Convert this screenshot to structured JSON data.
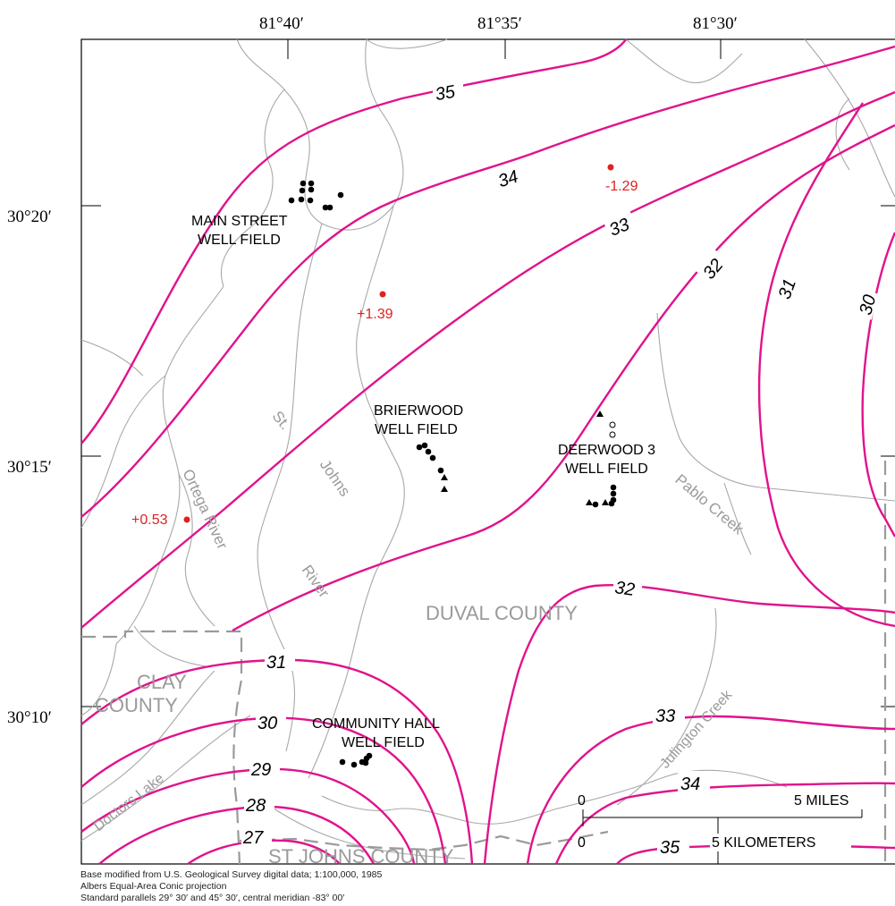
{
  "longitude_labels": [
    "81°40′",
    "81°35′",
    "81°30′"
  ],
  "latitude_labels": [
    "30°20′",
    "30°15′",
    "30°10′"
  ],
  "contours": {
    "c35_top": "35",
    "c34": "34",
    "c33": "33",
    "c32_top": "32",
    "c31_east": "31",
    "c30_east": "30",
    "c32_south": "32",
    "c31_south": "31",
    "c30_south": "30",
    "c29": "29",
    "c28": "28",
    "c27": "27",
    "c33_se": "33",
    "c34_se": "34",
    "c35_se": "35"
  },
  "well_fields": {
    "main_street": [
      "MAIN STREET",
      "WELL FIELD"
    ],
    "brierwood": [
      "BRIERWOOD",
      "WELL FIELD"
    ],
    "deerwood": [
      "DEERWOOD  3",
      "WELL  FIELD"
    ],
    "community_hall": [
      "COMMUNITY HALL",
      "WELL FIELD"
    ]
  },
  "counties": {
    "duval": "DUVAL COUNTY",
    "clay": [
      "CLAY",
      "COUNTY"
    ],
    "st_johns": "ST JOHNS COUNTY"
  },
  "water_features": {
    "st_johns_river": [
      "St.",
      "Johns",
      "River"
    ],
    "ortega_river": "Ortega River",
    "pablo_creek": "Pablo Creek",
    "julington_creek": "Julington Creek",
    "doctors_lake": "Doctors Lake"
  },
  "head_changes": [
    "-1.29",
    "+1.39",
    "+0.53"
  ],
  "scale_bar": {
    "miles_start": "0",
    "miles_end": "5 MILES",
    "km_start": "0",
    "km_end": "5 KILOMETERS"
  },
  "credits": [
    "Base modified from U.S. Geological Survey digital data; 1:100,000, 1985",
    "Albers Equal-Area Conic projection",
    "Standard parallels 29° 30′ and 45° 30′, central meridian -83° 00′"
  ],
  "colors": {
    "contour": "#e0138c",
    "boundary": "#9a9a9a",
    "hydro": "#a8a8a8",
    "observation": "#e02020",
    "well": "#000000"
  }
}
